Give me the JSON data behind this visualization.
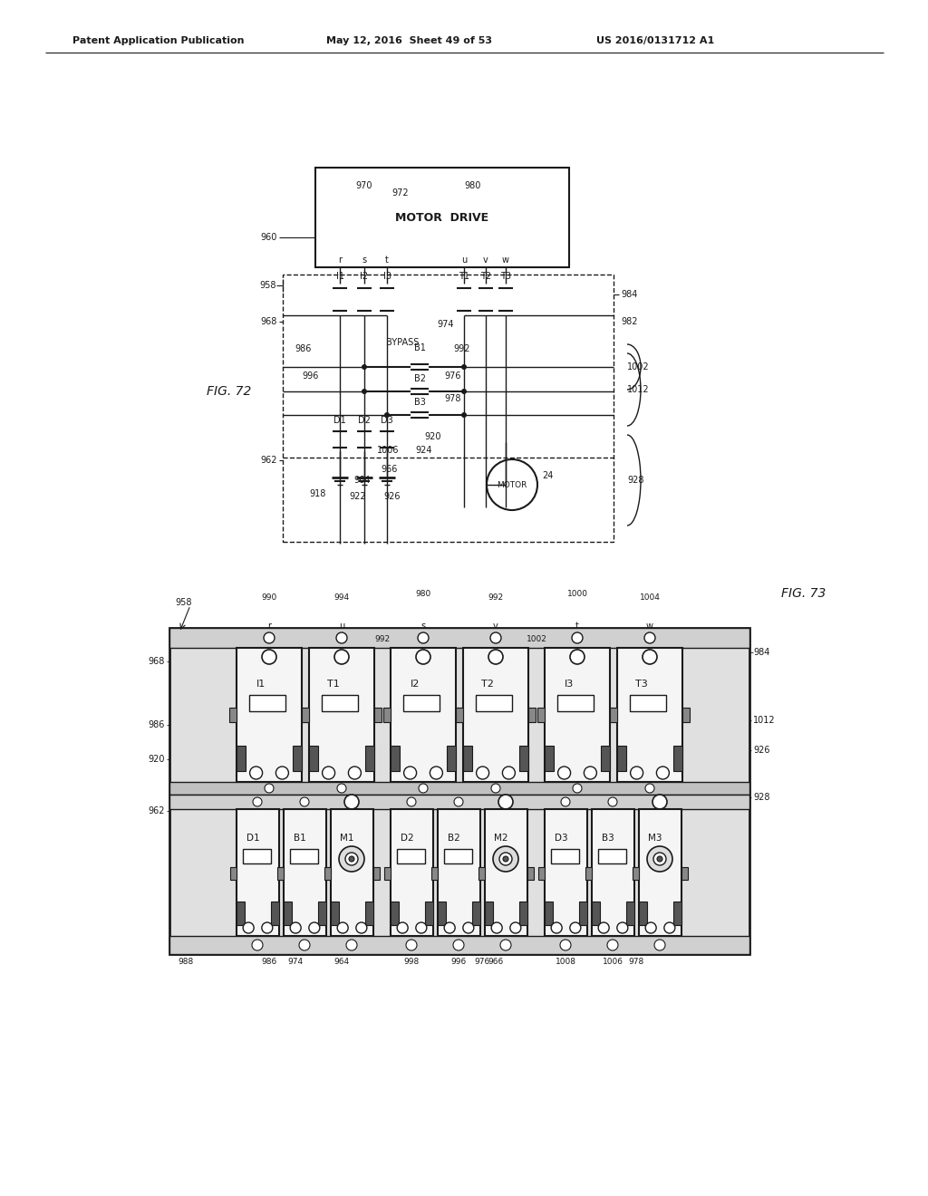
{
  "bg_color": "#ffffff",
  "header_left": "Patent Application Publication",
  "header_mid": "May 12, 2016  Sheet 49 of 53",
  "header_right": "US 2016/0131712 A1",
  "fig72_label": "FIG. 72",
  "fig73_label": "FIG. 73",
  "lc": "#1a1a1a",
  "tc": "#1a1a1a"
}
